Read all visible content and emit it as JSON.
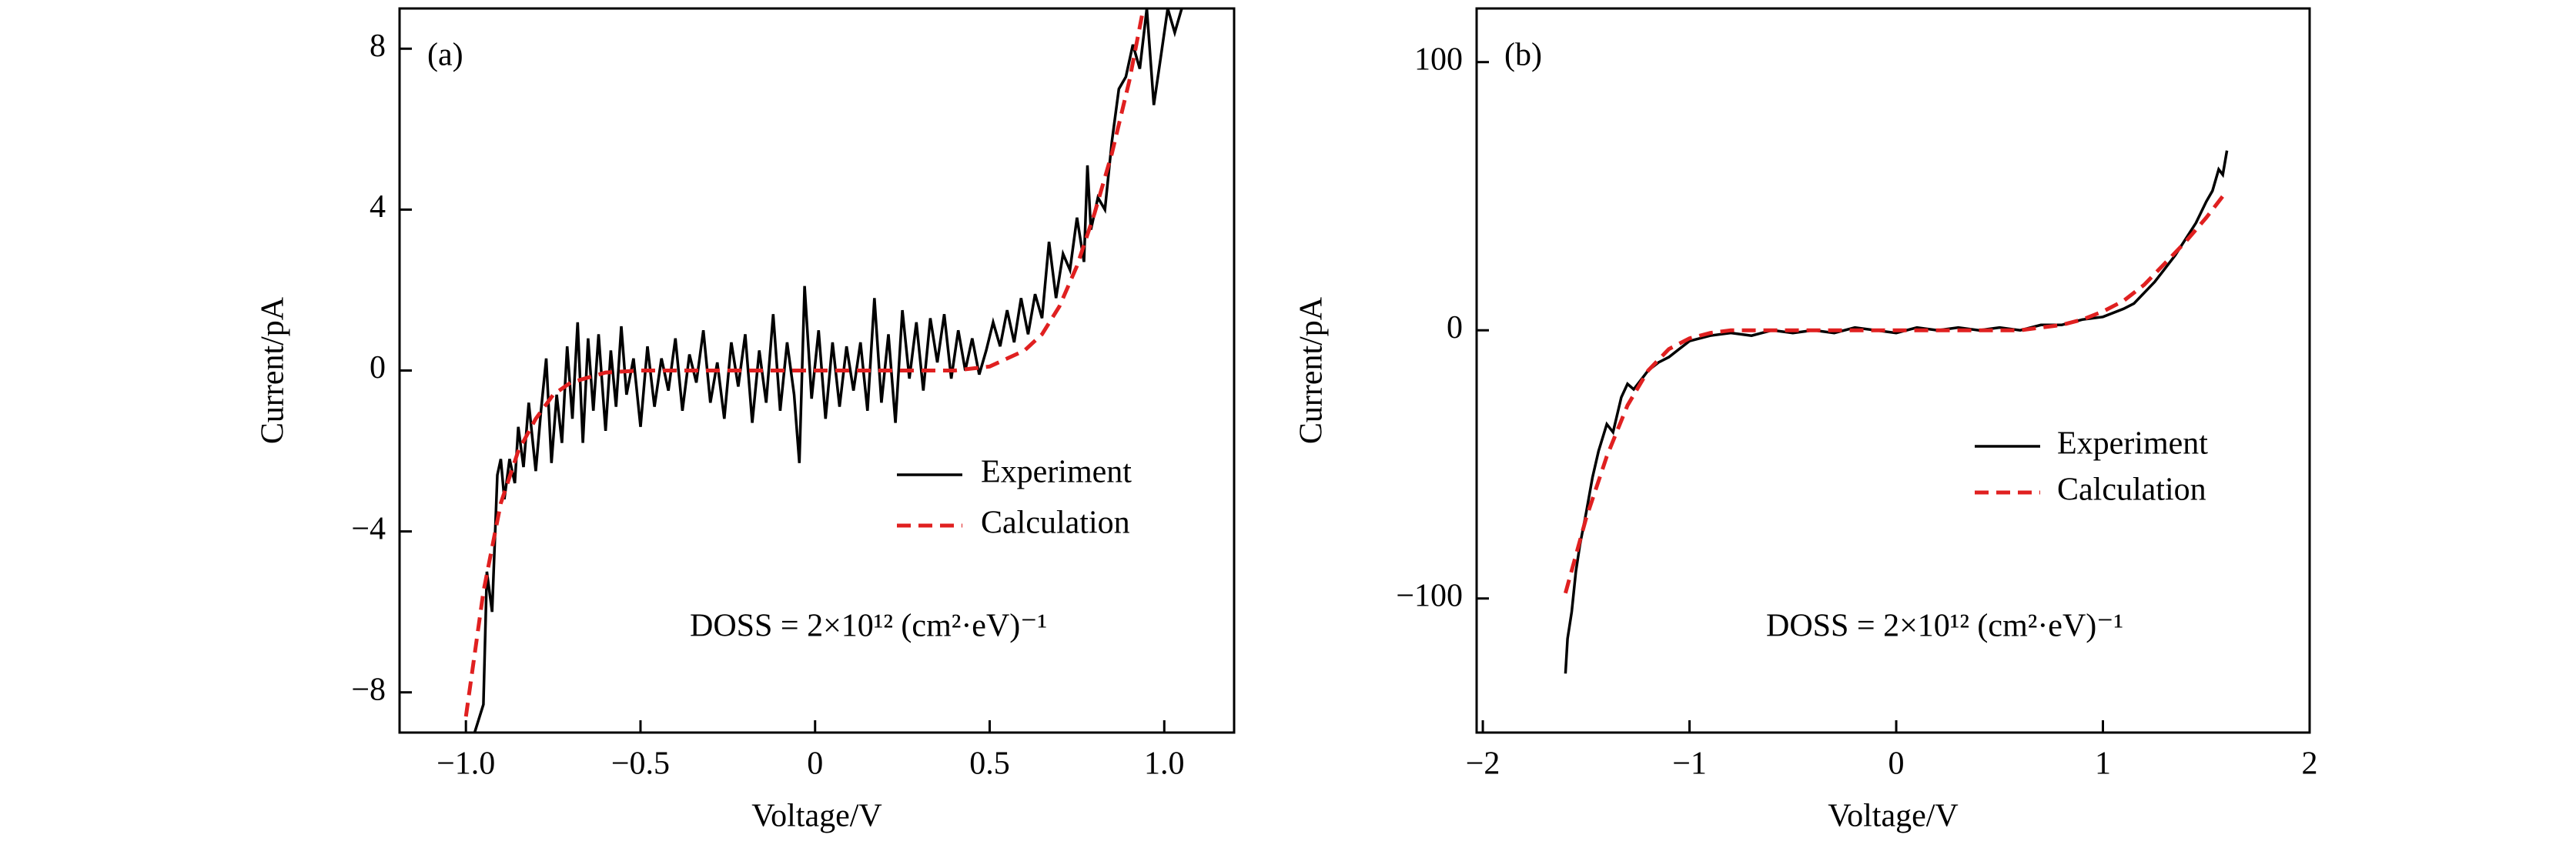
{
  "chart_data": [
    {
      "type": "line",
      "panel_label": "(a)",
      "x_label": "Voltage/V",
      "y_label": "Current/pA",
      "annotation": "DOSS = 2×10¹² (cm²·eV)⁻¹",
      "xlim": [
        -1.19,
        1.2
      ],
      "ylim": [
        -9,
        9
      ],
      "xticks": [
        {
          "value": -1,
          "label": "−1.0"
        },
        {
          "value": -0.5,
          "label": "−0.5"
        },
        0,
        0.5,
        {
          "value": 1,
          "label": "1.0"
        }
      ],
      "yticks": [
        {
          "value": -8,
          "label": "−8"
        },
        {
          "value": -4,
          "label": "−4"
        },
        0,
        4,
        8
      ],
      "series": [
        {
          "name": "Experiment",
          "color": "#000000",
          "dashed": false,
          "x": [
            -0.975,
            -0.95,
            -0.94,
            -0.925,
            -0.91,
            -0.9,
            -0.89,
            -0.875,
            -0.86,
            -0.85,
            -0.835,
            -0.82,
            -0.8,
            -0.785,
            -0.77,
            -0.755,
            -0.74,
            -0.725,
            -0.71,
            -0.695,
            -0.68,
            -0.665,
            -0.65,
            -0.635,
            -0.62,
            -0.6,
            -0.585,
            -0.57,
            -0.555,
            -0.54,
            -0.52,
            -0.5,
            -0.48,
            -0.46,
            -0.44,
            -0.42,
            -0.4,
            -0.38,
            -0.36,
            -0.34,
            -0.32,
            -0.3,
            -0.28,
            -0.26,
            -0.24,
            -0.22,
            -0.2,
            -0.18,
            -0.16,
            -0.14,
            -0.12,
            -0.1,
            -0.08,
            -0.06,
            -0.045,
            -0.03,
            -0.01,
            0.01,
            0.03,
            0.05,
            0.07,
            0.09,
            0.11,
            0.13,
            0.15,
            0.17,
            0.19,
            0.21,
            0.23,
            0.25,
            0.27,
            0.29,
            0.31,
            0.33,
            0.35,
            0.37,
            0.39,
            0.41,
            0.43,
            0.45,
            0.47,
            0.49,
            0.51,
            0.53,
            0.55,
            0.57,
            0.59,
            0.61,
            0.63,
            0.65,
            0.67,
            0.69,
            0.71,
            0.73,
            0.75,
            0.77,
            0.78,
            0.79,
            0.81,
            0.83,
            0.85,
            0.87,
            0.89,
            0.91,
            0.93,
            0.95,
            0.97,
            0.99,
            1.01,
            1.03,
            1.05
          ],
          "values": [
            -9.0,
            -8.3,
            -5.0,
            -6.0,
            -2.6,
            -2.2,
            -3.2,
            -2.2,
            -2.8,
            -1.4,
            -2.4,
            -0.8,
            -2.5,
            -1.0,
            0.3,
            -2.3,
            -0.6,
            -1.8,
            0.6,
            -1.2,
            1.2,
            -1.8,
            0.8,
            -1.0,
            0.9,
            -1.5,
            0.5,
            -0.9,
            1.1,
            -0.6,
            0.3,
            -1.4,
            0.6,
            -0.9,
            0.3,
            -0.5,
            0.8,
            -1.0,
            0.4,
            -0.3,
            1.0,
            -0.8,
            0.2,
            -1.2,
            0.7,
            -0.4,
            0.9,
            -1.3,
            0.5,
            -0.8,
            1.4,
            -1.0,
            0.7,
            -0.6,
            -2.3,
            2.1,
            -0.7,
            1.0,
            -1.2,
            0.7,
            -0.9,
            0.6,
            -0.5,
            0.7,
            -1.0,
            1.8,
            -0.8,
            0.9,
            -1.3,
            1.5,
            -0.2,
            1.2,
            -0.5,
            1.3,
            0.2,
            1.4,
            -0.2,
            1.0,
            0.0,
            0.8,
            -0.1,
            0.5,
            1.2,
            0.6,
            1.5,
            0.7,
            1.8,
            0.9,
            1.9,
            1.3,
            3.2,
            1.8,
            2.9,
            2.5,
            3.8,
            2.7,
            5.1,
            3.5,
            4.3,
            4.0,
            5.7,
            7.0,
            7.3,
            8.1,
            7.5,
            9.0,
            6.6,
            7.8,
            9.0,
            8.4,
            9.0
          ]
        },
        {
          "name": "Calculation",
          "color": "#e02020",
          "dashed": true,
          "x": [
            -1.0,
            -0.95,
            -0.9,
            -0.85,
            -0.8,
            -0.75,
            -0.7,
            -0.6,
            -0.5,
            -0.3,
            0,
            0.2,
            0.4,
            0.5,
            0.6,
            0.65,
            0.7,
            0.75,
            0.8,
            0.85,
            0.9,
            0.94
          ],
          "values": [
            -8.6,
            -5.5,
            -3.3,
            -2.0,
            -1.2,
            -0.6,
            -0.3,
            -0.05,
            0,
            0,
            0,
            0,
            0,
            0.1,
            0.5,
            0.9,
            1.6,
            2.6,
            3.9,
            5.4,
            7.2,
            9.0
          ]
        }
      ]
    },
    {
      "type": "line",
      "panel_label": "(b)",
      "x_label": "Voltage/V",
      "y_label": "Current/pA",
      "annotation": "DOSS = 2×10¹² (cm²·eV)⁻¹",
      "xlim": [
        -2.03,
        2.0
      ],
      "ylim": [
        -150,
        120
      ],
      "xticks": [
        {
          "value": -2,
          "label": "−2"
        },
        {
          "value": -1,
          "label": "−1"
        },
        0,
        1,
        2
      ],
      "yticks": [
        {
          "value": -100,
          "label": "−100"
        },
        0,
        100
      ],
      "series": [
        {
          "name": "Experiment",
          "color": "#000000",
          "dashed": false,
          "x": [
            -1.6,
            -1.59,
            -1.57,
            -1.55,
            -1.53,
            -1.5,
            -1.47,
            -1.44,
            -1.4,
            -1.37,
            -1.33,
            -1.3,
            -1.27,
            -1.23,
            -1.2,
            -1.15,
            -1.1,
            -1.05,
            -1.0,
            -0.95,
            -0.9,
            -0.8,
            -0.7,
            -0.6,
            -0.5,
            -0.4,
            -0.3,
            -0.2,
            -0.1,
            0,
            0.1,
            0.2,
            0.3,
            0.4,
            0.5,
            0.6,
            0.7,
            0.8,
            0.9,
            1.0,
            1.1,
            1.15,
            1.2,
            1.25,
            1.3,
            1.35,
            1.4,
            1.45,
            1.5,
            1.53,
            1.56,
            1.58,
            1.6
          ],
          "values": [
            -128,
            -115,
            -105,
            -90,
            -80,
            -68,
            -55,
            -45,
            -35,
            -38,
            -25,
            -20,
            -22,
            -18,
            -15,
            -12,
            -10,
            -7,
            -4,
            -3,
            -2,
            -1,
            -2,
            0,
            -1,
            0,
            -1,
            1,
            0,
            -1,
            1,
            0,
            1,
            0,
            1,
            0,
            2,
            2,
            4,
            5,
            8,
            10,
            14,
            18,
            23,
            28,
            34,
            40,
            48,
            52,
            60,
            58,
            67
          ]
        },
        {
          "name": "Calculation",
          "color": "#e02020",
          "dashed": true,
          "x": [
            -1.6,
            -1.5,
            -1.4,
            -1.3,
            -1.2,
            -1.1,
            -1.0,
            -0.9,
            -0.8,
            0,
            0.6,
            0.7,
            0.8,
            0.9,
            1.0,
            1.1,
            1.2,
            1.3,
            1.4,
            1.5,
            1.6
          ],
          "values": [
            -98,
            -70,
            -47,
            -28,
            -15,
            -7,
            -3,
            -1,
            0,
            0,
            0,
            1,
            2,
            4,
            7,
            11,
            17,
            25,
            33,
            42,
            52
          ]
        }
      ]
    }
  ]
}
